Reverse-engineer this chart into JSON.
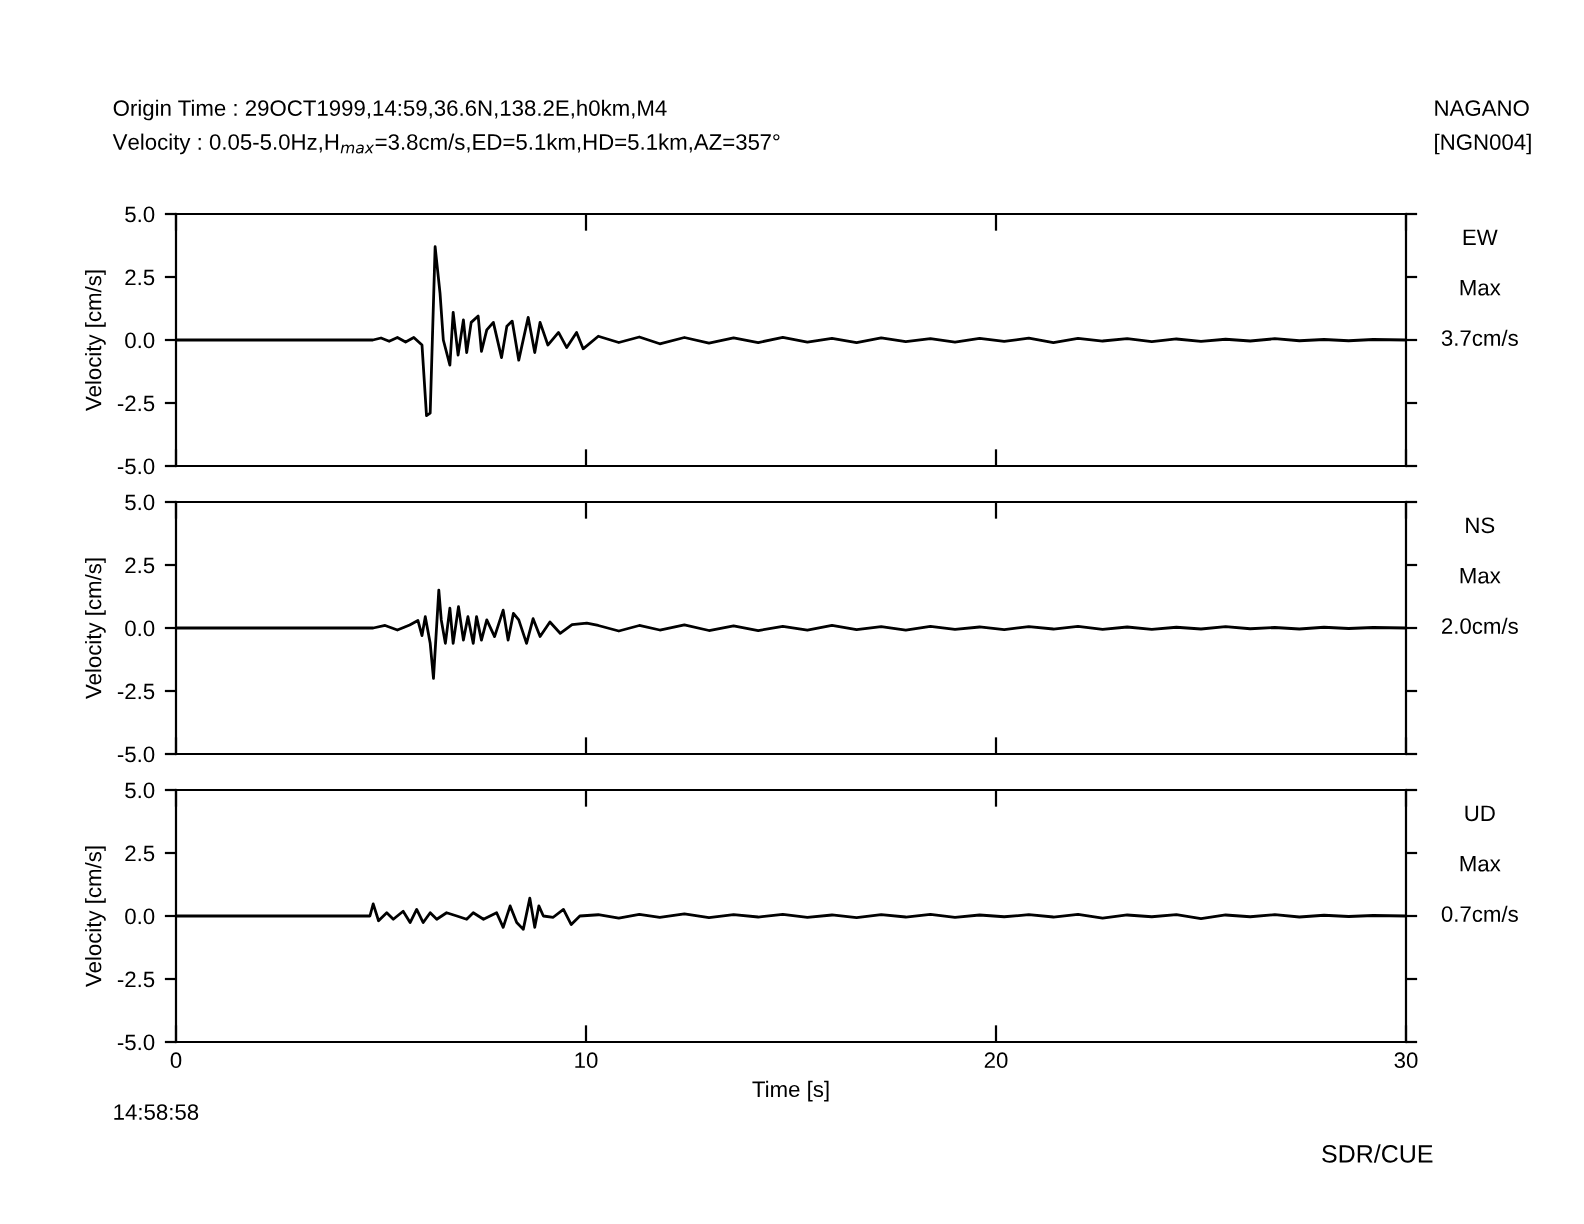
{
  "chart_data": [
    {
      "type": "line",
      "title": "Origin Time : 29OCT1999,14:59,36.6N,138.2E,h0km,M4",
      "subtitle": "Velocity : 0.05-5.0Hz,H$_{max}$=3.8cm/s,ED=5.1km,HD=5.1km,AZ=357°",
      "ylabel": "Velocity [cm/s]",
      "annotations": [
        "NAGANO",
        "[NGN004]",
        "EW",
        "Max",
        "3.7cm/s"
      ],
      "xlim": [
        0,
        30
      ],
      "xticks": [
        0,
        10,
        20,
        30
      ],
      "ylim": [
        -5,
        5
      ],
      "yticks": [
        {
          "value": 5,
          "label": "5.0"
        },
        {
          "value": 2.5,
          "label": "2.5"
        },
        {
          "value": 0,
          "label": "0.0"
        },
        {
          "value": -2.5,
          "label": "-2.5"
        },
        {
          "value": -5,
          "label": "-5.0"
        }
      ],
      "tick_labels": "y",
      "grid": false,
      "legend": false,
      "series": [
        {
          "color": "#000000",
          "x": [
            0,
            4.8,
            5.0,
            5.2,
            5.4,
            5.6,
            5.8,
            6.0,
            6.11,
            6.2,
            6.32,
            6.44,
            6.52,
            6.68,
            6.76,
            6.88,
            7.01,
            7.09,
            7.2,
            7.37,
            7.45,
            7.58,
            7.74,
            7.94,
            8.07,
            8.2,
            8.36,
            8.59,
            8.75,
            8.88,
            9.07,
            9.33,
            9.53,
            9.77,
            9.93,
            10.3,
            10.8,
            11.3,
            11.8,
            12.4,
            13,
            13.6,
            14.2,
            14.8,
            15.4,
            16,
            16.6,
            17.2,
            17.8,
            18.4,
            19,
            19.6,
            20.2,
            20.8,
            21.4,
            22,
            22.6,
            23.2,
            23.8,
            24.4,
            25,
            25.6,
            26.2,
            26.8,
            27.4,
            28,
            28.6,
            29.2,
            30
          ],
          "values": [
            0,
            0,
            0.08,
            -0.05,
            0.1,
            -0.08,
            0.1,
            -0.2,
            -3.0,
            -2.9,
            3.7,
            1.85,
            0,
            -1.0,
            1.1,
            -0.6,
            0.8,
            -0.5,
            0.7,
            0.95,
            -0.45,
            0.4,
            0.7,
            -0.7,
            0.55,
            0.75,
            -0.8,
            0.9,
            -0.5,
            0.7,
            -0.2,
            0.3,
            -0.3,
            0.3,
            -0.35,
            0.15,
            -0.1,
            0.12,
            -0.15,
            0.1,
            -0.12,
            0.08,
            -0.1,
            0.1,
            -0.08,
            0.06,
            -0.1,
            0.08,
            -0.06,
            0.05,
            -0.08,
            0.06,
            -0.05,
            0.07,
            -0.1,
            0.06,
            -0.04,
            0.05,
            -0.06,
            0.04,
            -0.05,
            0.03,
            -0.04,
            0.05,
            -0.03,
            0.02,
            -0.03,
            0.02,
            0
          ]
        }
      ]
    },
    {
      "type": "line",
      "ylabel": "Velocity [cm/s]",
      "annotations": [
        "NS",
        "Max",
        "2.0cm/s"
      ],
      "xlim": [
        0,
        30
      ],
      "xticks": [
        0,
        10,
        20,
        30
      ],
      "ylim": [
        -5,
        5
      ],
      "yticks": [
        {
          "value": 5,
          "label": "5.0"
        },
        {
          "value": 2.5,
          "label": "2.5"
        },
        {
          "value": 0,
          "label": "0.0"
        },
        {
          "value": -2.5,
          "label": "-2.5"
        },
        {
          "value": -5,
          "label": "-5.0"
        }
      ],
      "tick_labels": "y",
      "grid": false,
      "legend": false,
      "series": [
        {
          "color": "#000000",
          "x": [
            0,
            4.81,
            5.1,
            5.4,
            5.7,
            5.9,
            6.0,
            6.08,
            6.2,
            6.28,
            6.41,
            6.47,
            6.57,
            6.68,
            6.76,
            6.89,
            7.01,
            7.12,
            7.25,
            7.33,
            7.45,
            7.58,
            7.77,
            7.98,
            8.1,
            8.23,
            8.36,
            8.55,
            8.71,
            8.88,
            9.12,
            9.37,
            9.66,
            10.02,
            10.3,
            10.8,
            11.3,
            11.8,
            12.4,
            13,
            13.6,
            14.2,
            14.8,
            15.4,
            16,
            16.6,
            17.2,
            17.8,
            18.4,
            19,
            19.6,
            20.2,
            20.8,
            21.4,
            22,
            22.6,
            23.2,
            23.8,
            24.4,
            25,
            25.6,
            26.2,
            26.8,
            27.4,
            28,
            28.6,
            29.2,
            30
          ],
          "values": [
            0,
            0,
            0.1,
            -0.08,
            0.12,
            0.3,
            -0.3,
            0.45,
            -0.61,
            -2.0,
            1.5,
            0.32,
            -0.61,
            0.79,
            -0.61,
            0.85,
            -0.48,
            0.45,
            -0.61,
            0.45,
            -0.48,
            0.32,
            -0.34,
            0.71,
            -0.48,
            0.58,
            0.32,
            -0.61,
            0.37,
            -0.34,
            0.24,
            -0.21,
            0.13,
            0.19,
            0.1,
            -0.12,
            0.1,
            -0.08,
            0.12,
            -0.1,
            0.08,
            -0.1,
            0.06,
            -0.08,
            0.1,
            -0.06,
            0.05,
            -0.08,
            0.06,
            -0.05,
            0.04,
            -0.06,
            0.05,
            -0.04,
            0.06,
            -0.05,
            0.04,
            -0.05,
            0.03,
            -0.04,
            0.05,
            -0.03,
            0.02,
            -0.04,
            0.03,
            -0.02,
            0.02,
            0
          ]
        }
      ]
    },
    {
      "type": "line",
      "xlabel": "Time [s]",
      "ylabel": "Velocity [cm/s]",
      "annotations": [
        "14:58:58",
        "SDR/CUE",
        "UD",
        "Max",
        "0.7cm/s"
      ],
      "xlim": [
        0,
        30
      ],
      "xticks": [
        0,
        10,
        20,
        30
      ],
      "ylim": [
        -5,
        5
      ],
      "yticks": [
        {
          "value": 5,
          "label": "5.0"
        },
        {
          "value": 2.5,
          "label": "2.5"
        },
        {
          "value": 0,
          "label": "0.0"
        },
        {
          "value": -2.5,
          "label": "-2.5"
        },
        {
          "value": -5,
          "label": "-5.0"
        }
      ],
      "grid": false,
      "legend": false,
      "series": [
        {
          "color": "#000000",
          "x": [
            0,
            4.73,
            4.81,
            4.94,
            5.14,
            5.3,
            5.54,
            5.71,
            5.87,
            6.03,
            6.2,
            6.36,
            6.6,
            6.85,
            7.09,
            7.25,
            7.5,
            7.82,
            7.98,
            8.15,
            8.31,
            8.47,
            8.63,
            8.75,
            8.85,
            8.96,
            9.2,
            9.45,
            9.64,
            9.85,
            10.3,
            10.8,
            11.3,
            11.8,
            12.4,
            13,
            13.6,
            14.2,
            14.8,
            15.4,
            16,
            16.6,
            17.2,
            17.8,
            18.4,
            19,
            19.6,
            20.2,
            20.8,
            21.4,
            22,
            22.6,
            23.2,
            23.8,
            24.4,
            25,
            25.6,
            26.2,
            26.8,
            27.4,
            28,
            28.6,
            29.2,
            30
          ],
          "values": [
            0,
            0,
            0.48,
            -0.19,
            0.13,
            -0.13,
            0.19,
            -0.26,
            0.26,
            -0.26,
            0.13,
            -0.13,
            0.13,
            0,
            -0.13,
            0.13,
            -0.13,
            0.13,
            -0.45,
            0.4,
            -0.26,
            -0.53,
            0.71,
            -0.45,
            0.4,
            0,
            -0.05,
            0.26,
            -0.34,
            0,
            0.05,
            -0.08,
            0.06,
            -0.05,
            0.08,
            -0.06,
            0.05,
            -0.04,
            0.06,
            -0.05,
            0.04,
            -0.06,
            0.05,
            -0.04,
            0.06,
            -0.05,
            0.04,
            -0.03,
            0.05,
            -0.04,
            0.06,
            -0.08,
            0.04,
            -0.03,
            0.05,
            -0.1,
            0.04,
            -0.03,
            0.05,
            -0.04,
            0.03,
            -0.02,
            0.02,
            0
          ]
        }
      ]
    }
  ]
}
